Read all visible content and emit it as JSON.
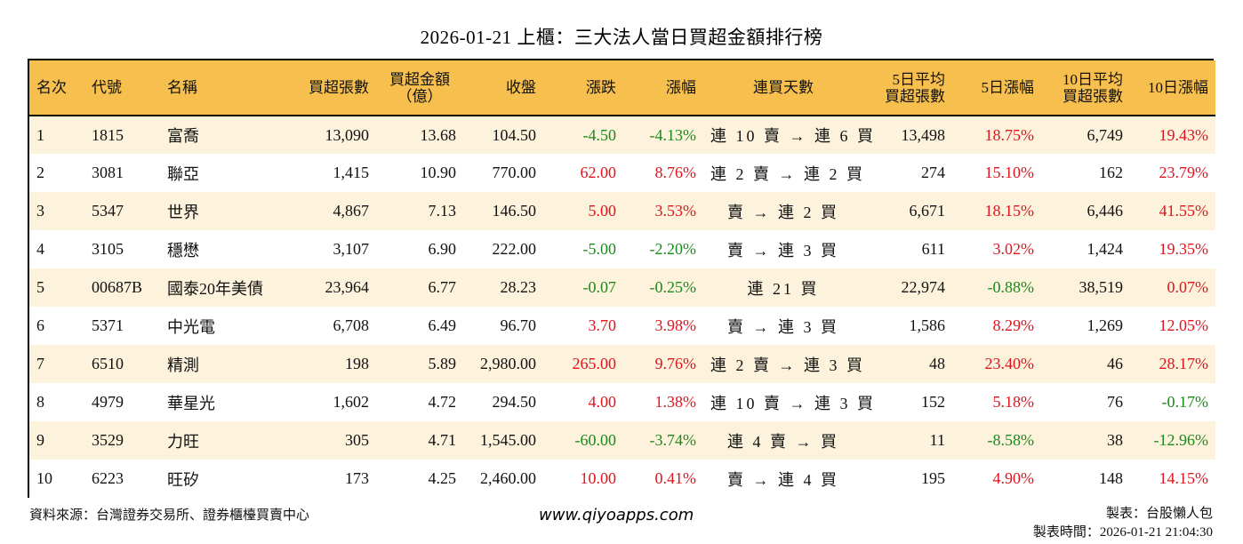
{
  "title": "2026-01-21 上櫃：三大法人當日買超金額排行榜",
  "colors": {
    "header_bg": "#f6bf4e",
    "row_alt_bg": "#fdf2dc",
    "up": "#e0141e",
    "down": "#1a8a1a"
  },
  "table": {
    "headers": {
      "rank": "名次",
      "code": "代號",
      "name": "名稱",
      "net_buy_lots": "買超張數",
      "net_buy_amount_1": "買超金額",
      "net_buy_amount_2": "（億）",
      "close": "收盤",
      "change": "漲跌",
      "change_pct": "漲幅",
      "streak": "連買天數",
      "avg5_1": "5日平均",
      "avg5_2": "買超張數",
      "pct5": "5日漲幅",
      "avg10_1": "10日平均",
      "avg10_2": "買超張數",
      "pct10": "10日漲幅"
    },
    "rows": [
      {
        "rank": "1",
        "code": "1815",
        "name": "富喬",
        "lots": "13,090",
        "amount": "13.68",
        "close": "104.50",
        "change": "-4.50",
        "change_pct": "-4.13%",
        "streak": "連 10 賣 → 連 6 買",
        "avg5": "13,498",
        "pct5": "18.75%",
        "avg10": "6,749",
        "pct10": "19.43%"
      },
      {
        "rank": "2",
        "code": "3081",
        "name": "聯亞",
        "lots": "1,415",
        "amount": "10.90",
        "close": "770.00",
        "change": "62.00",
        "change_pct": "8.76%",
        "streak": "連 2 賣 → 連 2 買",
        "avg5": "274",
        "pct5": "15.10%",
        "avg10": "162",
        "pct10": "23.79%"
      },
      {
        "rank": "3",
        "code": "5347",
        "name": "世界",
        "lots": "4,867",
        "amount": "7.13",
        "close": "146.50",
        "change": "5.00",
        "change_pct": "3.53%",
        "streak": "賣 → 連 2 買",
        "avg5": "6,671",
        "pct5": "18.15%",
        "avg10": "6,446",
        "pct10": "41.55%"
      },
      {
        "rank": "4",
        "code": "3105",
        "name": "穩懋",
        "lots": "3,107",
        "amount": "6.90",
        "close": "222.00",
        "change": "-5.00",
        "change_pct": "-2.20%",
        "streak": "賣 → 連 3 買",
        "avg5": "611",
        "pct5": "3.02%",
        "avg10": "1,424",
        "pct10": "19.35%"
      },
      {
        "rank": "5",
        "code": "00687B",
        "name": "國泰20年美債",
        "lots": "23,964",
        "amount": "6.77",
        "close": "28.23",
        "change": "-0.07",
        "change_pct": "-0.25%",
        "streak": "連 21 買",
        "avg5": "22,974",
        "pct5": "-0.88%",
        "avg10": "38,519",
        "pct10": "0.07%"
      },
      {
        "rank": "6",
        "code": "5371",
        "name": "中光電",
        "lots": "6,708",
        "amount": "6.49",
        "close": "96.70",
        "change": "3.70",
        "change_pct": "3.98%",
        "streak": "賣 → 連 3 買",
        "avg5": "1,586",
        "pct5": "8.29%",
        "avg10": "1,269",
        "pct10": "12.05%"
      },
      {
        "rank": "7",
        "code": "6510",
        "name": "精測",
        "lots": "198",
        "amount": "5.89",
        "close": "2,980.00",
        "change": "265.00",
        "change_pct": "9.76%",
        "streak": "連 2 賣 → 連 3 買",
        "avg5": "48",
        "pct5": "23.40%",
        "avg10": "46",
        "pct10": "28.17%"
      },
      {
        "rank": "8",
        "code": "4979",
        "name": "華星光",
        "lots": "1,602",
        "amount": "4.72",
        "close": "294.50",
        "change": "4.00",
        "change_pct": "1.38%",
        "streak": "連 10 賣 → 連 3 買",
        "avg5": "152",
        "pct5": "5.18%",
        "avg10": "76",
        "pct10": "-0.17%"
      },
      {
        "rank": "9",
        "code": "3529",
        "name": "力旺",
        "lots": "305",
        "amount": "4.71",
        "close": "1,545.00",
        "change": "-60.00",
        "change_pct": "-3.74%",
        "streak": "連 4 賣 → 買",
        "avg5": "11",
        "pct5": "-8.58%",
        "avg10": "38",
        "pct10": "-12.96%"
      },
      {
        "rank": "10",
        "code": "6223",
        "name": "旺矽",
        "lots": "173",
        "amount": "4.25",
        "close": "2,460.00",
        "change": "10.00",
        "change_pct": "0.41%",
        "streak": "賣 → 連 4 買",
        "avg5": "195",
        "pct5": "4.90%",
        "avg10": "148",
        "pct10": "14.15%"
      }
    ]
  },
  "footer": {
    "source": "資料來源：台灣證券交易所、證券櫃檯買賣中心",
    "website": "www.qiyoapps.com",
    "maker": "製表：台股懶人包",
    "made_time": "製表時間：2026-01-21 21:04:30"
  }
}
